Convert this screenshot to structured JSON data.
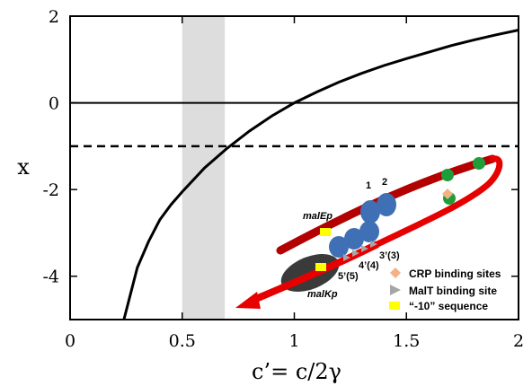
{
  "chart_data": {
    "type": "line",
    "xlabel": "c’= c/2γ",
    "ylabel": "x",
    "xlim": [
      0,
      2
    ],
    "ylim": [
      -5,
      2
    ],
    "x_ticks": [
      0,
      0.5,
      1,
      1.5,
      2
    ],
    "x_tick_labels": [
      "0",
      "0.5",
      "1",
      "1.5",
      "2"
    ],
    "y_ticks": [
      -4,
      -2,
      0,
      2
    ],
    "y_tick_labels": [
      "-4",
      "-2",
      "0",
      "2"
    ],
    "grid": false,
    "shaded_band": {
      "x_range": [
        0.5,
        0.69
      ],
      "color": "#d9d9d9"
    },
    "hlines": [
      {
        "y": 0,
        "style": "solid",
        "color": "#000000"
      },
      {
        "y": -1,
        "style": "dashed",
        "color": "#000000"
      }
    ],
    "series": [
      {
        "color": "#000000",
        "x": [
          0.24,
          0.3,
          0.35,
          0.4,
          0.45,
          0.5,
          0.6,
          0.7,
          0.8,
          0.9,
          1.0,
          1.1,
          1.2,
          1.3,
          1.4,
          1.5,
          1.6,
          1.7,
          1.8,
          1.9,
          2.0
        ],
        "y": [
          -5.0,
          -3.8,
          -3.2,
          -2.7,
          -2.35,
          -2.05,
          -1.5,
          -1.05,
          -0.65,
          -0.3,
          0.0,
          0.25,
          0.48,
          0.68,
          0.86,
          1.02,
          1.17,
          1.32,
          1.45,
          1.57,
          1.68
        ]
      }
    ]
  },
  "inset": {
    "labels": {
      "site_1": "1",
      "site_2": "2",
      "site_3": "3’(3)",
      "site_4": "4’(4)",
      "site_5": "5’(5)",
      "malEp": "malEp",
      "malKp": "malKp"
    },
    "legend": [
      {
        "label": "CRP binding sites",
        "color": "#f4b183"
      },
      {
        "label": "MalT binding site",
        "color": "#a6a6a6"
      },
      {
        "label": "“-10” sequence",
        "color": "#ffff00"
      }
    ],
    "colors": {
      "dna_strand": "#e60000",
      "dna_dark": "#b30000",
      "protein": "#3f6fb5",
      "green_sites": "#1e9e3b",
      "polymerase": "#404040"
    }
  }
}
